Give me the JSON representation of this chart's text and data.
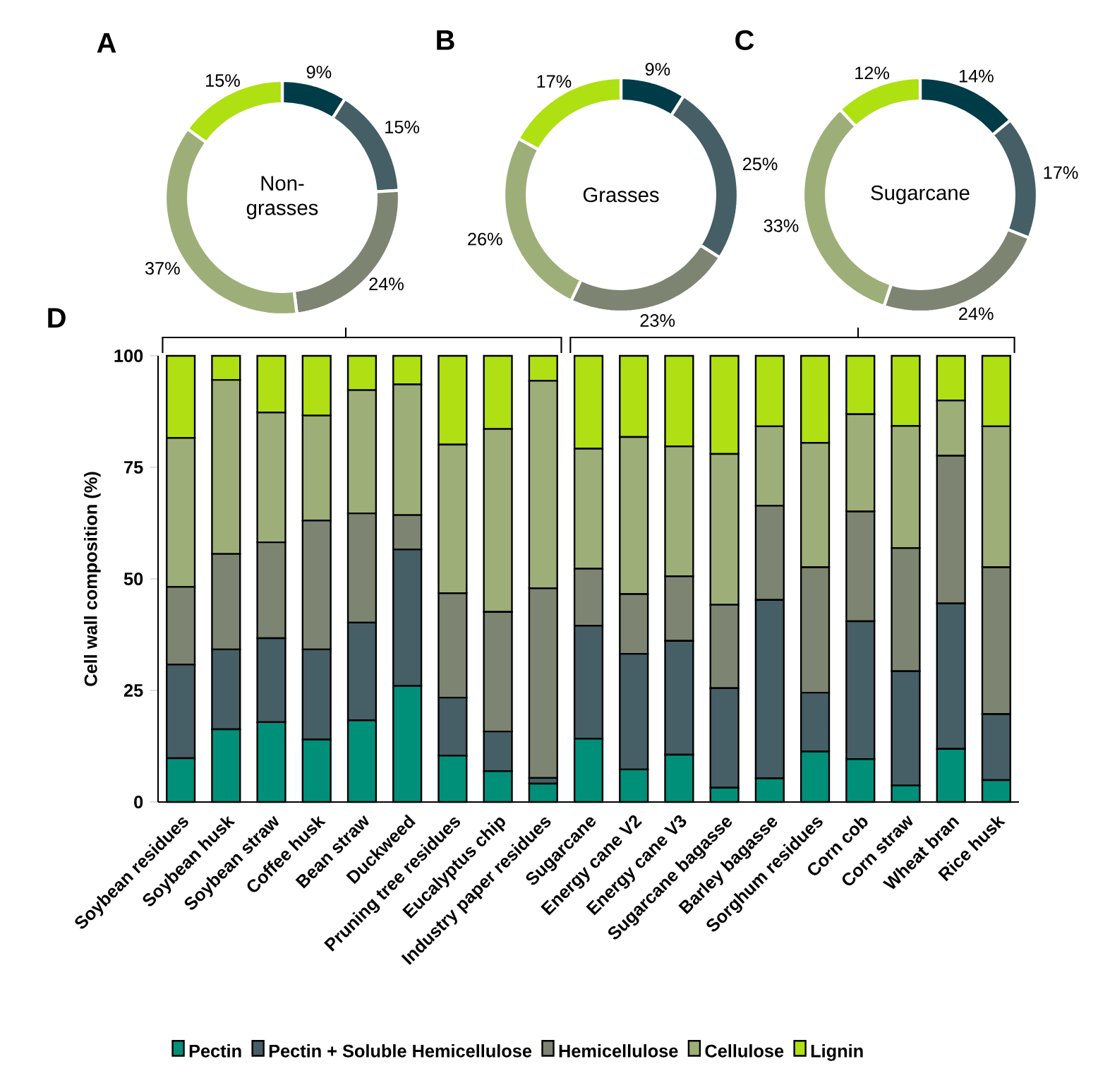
{
  "chart_data": [
    {
      "type": "donut",
      "title": "A",
      "subtitle": "Non-grasses",
      "categories": [
        null,
        null,
        null,
        null,
        null
      ],
      "values": [
        9,
        15,
        24,
        37,
        15
      ],
      "colors": [
        "#003c47",
        "#465f66",
        "#7d8572",
        "#9eae78",
        "#aee012"
      ],
      "value_labels": [
        "9%",
        "15%",
        "24%",
        "37%",
        "15%"
      ]
    },
    {
      "type": "donut",
      "title": "B",
      "subtitle": "Grasses",
      "categories": [
        null,
        null,
        null,
        null,
        null
      ],
      "values": [
        9,
        25,
        23,
        26,
        17
      ],
      "colors": [
        "#003c47",
        "#465f66",
        "#7d8572",
        "#9eae78",
        "#aee012"
      ],
      "value_labels": [
        "9%",
        "25%",
        "23%",
        "26%",
        "17%"
      ]
    },
    {
      "type": "donut",
      "title": "C",
      "subtitle": "Sugarcane",
      "categories": [
        null,
        null,
        null,
        null,
        null
      ],
      "values": [
        14,
        17,
        24,
        33,
        12
      ],
      "colors": [
        "#003c47",
        "#465f66",
        "#7d8572",
        "#9eae78",
        "#aee012"
      ],
      "value_labels": [
        "14%",
        "17%",
        "24%",
        "33%",
        "12%"
      ]
    },
    {
      "type": "bar",
      "title": "D",
      "ylabel": "Cell wall composition (%)",
      "stacked": true,
      "legend": "bottom",
      "ylim": [
        0,
        100
      ],
      "yticks": [
        0,
        25,
        50,
        75,
        100
      ],
      "categories": [
        "Soybean residues",
        "Soybean husk",
        "Soybean straw",
        "Coffee husk",
        "Bean straw",
        "Duckweed",
        "Pruning tree residues",
        "Eucalyptus chip",
        "Industry paper residues",
        "Sugarcane",
        "Energy cane V2",
        "Energy cane V3",
        "Sugarcane bagasse",
        "Barley bagasse",
        "Sorghum residues",
        "Corn cob",
        "Corn straw",
        "Wheat bran",
        "Rice husk"
      ],
      "series": [
        {
          "name": "Pectin",
          "color": "#00907a",
          "values": [
            9.8,
            16.3,
            17.9,
            14.0,
            18.3,
            26.0,
            10.4,
            6.9,
            4.1,
            14.2,
            7.3,
            10.6,
            3.2,
            5.3,
            11.3,
            9.6,
            3.7,
            11.9,
            4.9
          ]
        },
        {
          "name": "Pectin + Soluble Hemicellulose",
          "color": "#465f66",
          "values": [
            21.0,
            17.9,
            18.8,
            20.2,
            21.9,
            30.6,
            13.0,
            8.9,
            1.3,
            25.3,
            25.9,
            25.5,
            22.3,
            40.0,
            13.2,
            30.9,
            25.6,
            32.6,
            14.8
          ]
        },
        {
          "name": "Hemicellulose",
          "color": "#7d8572",
          "values": [
            17.4,
            21.4,
            21.5,
            28.9,
            24.5,
            7.7,
            23.4,
            26.8,
            42.5,
            12.8,
            13.4,
            14.5,
            18.7,
            21.1,
            28.1,
            24.6,
            27.6,
            33.1,
            32.9
          ]
        },
        {
          "name": "Cellulose",
          "color": "#9eae78",
          "values": [
            33.4,
            39.0,
            29.1,
            23.5,
            27.6,
            29.3,
            33.3,
            41.0,
            46.5,
            26.9,
            35.2,
            29.1,
            33.8,
            17.8,
            27.9,
            21.8,
            27.4,
            12.4,
            31.6
          ]
        },
        {
          "name": "Lignin",
          "color": "#b0e014",
          "values": [
            18.4,
            5.4,
            12.7,
            13.4,
            7.7,
            6.4,
            19.9,
            16.4,
            5.6,
            20.8,
            18.2,
            20.3,
            22.0,
            15.8,
            19.5,
            13.1,
            15.7,
            10.0,
            15.8
          ]
        }
      ]
    }
  ]
}
